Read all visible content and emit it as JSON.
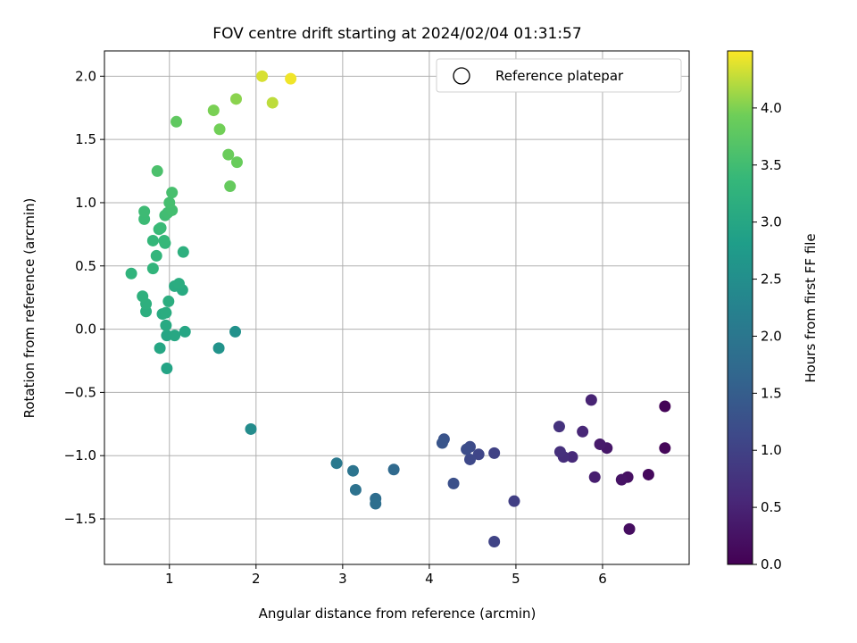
{
  "chart_data": {
    "type": "scatter",
    "title": "FOV centre drift starting at 2024/02/04 01:31:57",
    "xlabel": "Angular distance from reference (arcmin)",
    "ylabel": "Rotation from reference (arcmin)",
    "xlim": [
      0.25,
      7.0
    ],
    "ylim": [
      -1.86,
      2.2
    ],
    "x_ticks": [
      1,
      2,
      3,
      4,
      5,
      6
    ],
    "y_ticks": [
      -1.5,
      -1.0,
      -0.5,
      0.0,
      0.5,
      1.0,
      1.5,
      2.0
    ],
    "grid": true,
    "legend": {
      "position": "top-right",
      "entries": [
        "Reference platepar"
      ]
    },
    "colorbar": {
      "label": "Hours from first FF file",
      "range": [
        0.0,
        4.5
      ],
      "ticks": [
        0.0,
        0.5,
        1.0,
        1.5,
        2.0,
        2.5,
        3.0,
        3.5,
        4.0
      ],
      "colormap": "viridis"
    },
    "points": [
      {
        "x": 6.72,
        "y": -0.61,
        "c": 0.05
      },
      {
        "x": 6.72,
        "y": -0.94,
        "c": 0.08
      },
      {
        "x": 6.53,
        "y": -1.15,
        "c": 0.12
      },
      {
        "x": 6.31,
        "y": -1.58,
        "c": 0.18
      },
      {
        "x": 6.29,
        "y": -1.17,
        "c": 0.22
      },
      {
        "x": 6.22,
        "y": -1.19,
        "c": 0.26
      },
      {
        "x": 6.05,
        "y": -0.94,
        "c": 0.32
      },
      {
        "x": 5.97,
        "y": -0.91,
        "c": 0.36
      },
      {
        "x": 5.91,
        "y": -1.17,
        "c": 0.42
      },
      {
        "x": 5.87,
        "y": -0.56,
        "c": 0.5
      },
      {
        "x": 5.77,
        "y": -0.81,
        "c": 0.55
      },
      {
        "x": 5.65,
        "y": -1.01,
        "c": 0.6
      },
      {
        "x": 5.55,
        "y": -1.01,
        "c": 0.66
      },
      {
        "x": 5.51,
        "y": -0.97,
        "c": 0.7
      },
      {
        "x": 5.5,
        "y": -0.77,
        "c": 0.74
      },
      {
        "x": 4.98,
        "y": -1.36,
        "c": 0.95
      },
      {
        "x": 4.75,
        "y": -0.98,
        "c": 1.0
      },
      {
        "x": 4.75,
        "y": -1.68,
        "c": 1.04
      },
      {
        "x": 4.57,
        "y": -0.99,
        "c": 1.08
      },
      {
        "x": 4.47,
        "y": -1.03,
        "c": 1.12
      },
      {
        "x": 4.47,
        "y": -0.93,
        "c": 1.16
      },
      {
        "x": 4.43,
        "y": -0.95,
        "c": 1.2
      },
      {
        "x": 4.28,
        "y": -1.22,
        "c": 1.25
      },
      {
        "x": 4.17,
        "y": -0.87,
        "c": 1.3
      },
      {
        "x": 4.15,
        "y": -0.9,
        "c": 1.34
      },
      {
        "x": 3.59,
        "y": -1.11,
        "c": 1.72
      },
      {
        "x": 3.38,
        "y": -1.34,
        "c": 1.8
      },
      {
        "x": 3.38,
        "y": -1.38,
        "c": 1.84
      },
      {
        "x": 3.15,
        "y": -1.27,
        "c": 1.9
      },
      {
        "x": 3.12,
        "y": -1.12,
        "c": 1.95
      },
      {
        "x": 2.93,
        "y": -1.06,
        "c": 2.05
      },
      {
        "x": 1.94,
        "y": -0.79,
        "c": 2.45
      },
      {
        "x": 1.76,
        "y": -0.02,
        "c": 2.55
      },
      {
        "x": 1.57,
        "y": -0.15,
        "c": 2.6
      },
      {
        "x": 0.97,
        "y": -0.31,
        "c": 2.95
      },
      {
        "x": 0.89,
        "y": -0.15,
        "c": 3.0
      },
      {
        "x": 0.97,
        "y": -0.05,
        "c": 2.98
      },
      {
        "x": 1.06,
        "y": -0.05,
        "c": 3.02
      },
      {
        "x": 1.18,
        "y": -0.02,
        "c": 3.0
      },
      {
        "x": 0.96,
        "y": 0.03,
        "c": 3.05
      },
      {
        "x": 0.92,
        "y": 0.12,
        "c": 3.1
      },
      {
        "x": 0.96,
        "y": 0.13,
        "c": 3.12
      },
      {
        "x": 0.73,
        "y": 0.14,
        "c": 3.18
      },
      {
        "x": 0.73,
        "y": 0.2,
        "c": 3.2
      },
      {
        "x": 0.69,
        "y": 0.26,
        "c": 3.22
      },
      {
        "x": 0.99,
        "y": 0.22,
        "c": 3.15
      },
      {
        "x": 1.15,
        "y": 0.31,
        "c": 3.08
      },
      {
        "x": 1.06,
        "y": 0.34,
        "c": 3.1
      },
      {
        "x": 1.11,
        "y": 0.36,
        "c": 3.12
      },
      {
        "x": 0.56,
        "y": 0.44,
        "c": 3.28
      },
      {
        "x": 0.81,
        "y": 0.48,
        "c": 3.3
      },
      {
        "x": 0.85,
        "y": 0.58,
        "c": 3.32
      },
      {
        "x": 1.16,
        "y": 0.61,
        "c": 3.2
      },
      {
        "x": 0.95,
        "y": 0.68,
        "c": 3.34
      },
      {
        "x": 0.81,
        "y": 0.7,
        "c": 3.36
      },
      {
        "x": 0.94,
        "y": 0.7,
        "c": 3.38
      },
      {
        "x": 0.88,
        "y": 0.79,
        "c": 3.4
      },
      {
        "x": 0.9,
        "y": 0.8,
        "c": 3.42
      },
      {
        "x": 0.71,
        "y": 0.87,
        "c": 3.44
      },
      {
        "x": 0.71,
        "y": 0.93,
        "c": 3.46
      },
      {
        "x": 0.95,
        "y": 0.9,
        "c": 3.48
      },
      {
        "x": 0.98,
        "y": 0.92,
        "c": 3.5
      },
      {
        "x": 1.03,
        "y": 0.94,
        "c": 3.52
      },
      {
        "x": 1.0,
        "y": 1.0,
        "c": 3.54
      },
      {
        "x": 1.03,
        "y": 1.08,
        "c": 3.56
      },
      {
        "x": 0.86,
        "y": 1.25,
        "c": 3.6
      },
      {
        "x": 1.7,
        "y": 1.13,
        "c": 3.85
      },
      {
        "x": 1.78,
        "y": 1.32,
        "c": 3.88
      },
      {
        "x": 1.68,
        "y": 1.38,
        "c": 3.9
      },
      {
        "x": 1.58,
        "y": 1.58,
        "c": 3.95
      },
      {
        "x": 1.08,
        "y": 1.64,
        "c": 3.8
      },
      {
        "x": 1.51,
        "y": 1.73,
        "c": 3.98
      },
      {
        "x": 1.77,
        "y": 1.82,
        "c": 4.05
      },
      {
        "x": 2.19,
        "y": 1.79,
        "c": 4.25
      },
      {
        "x": 2.07,
        "y": 2.0,
        "c": 4.35
      },
      {
        "x": 2.4,
        "y": 1.98,
        "c": 4.45
      }
    ]
  }
}
